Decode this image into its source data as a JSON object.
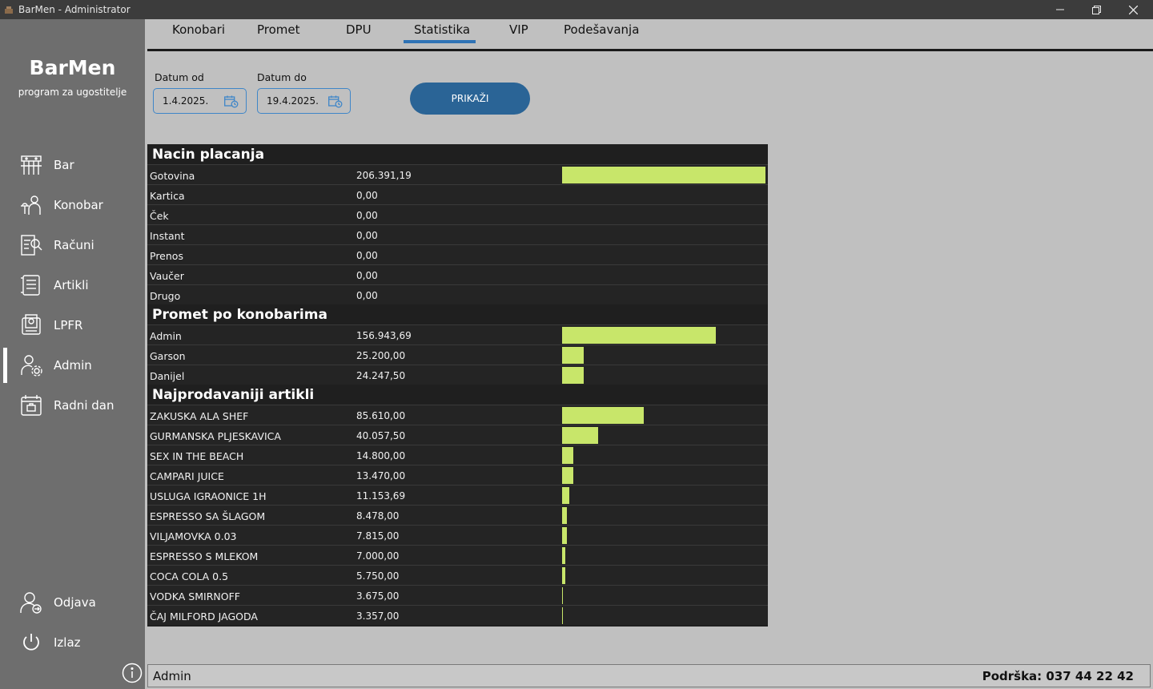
{
  "window": {
    "title": "BarMen - Administrator"
  },
  "brand": {
    "name": "BarMen",
    "tagline": "program za ugostitelje"
  },
  "sidebar": {
    "items": [
      {
        "label": "Bar",
        "icon": "bar-icon"
      },
      {
        "label": "Konobar",
        "icon": "waiter-icon"
      },
      {
        "label": "Računi",
        "icon": "receipt-search-icon"
      },
      {
        "label": "Artikli",
        "icon": "articles-list-icon"
      },
      {
        "label": "LPFR",
        "icon": "lpfr-icon"
      },
      {
        "label": "Admin",
        "icon": "admin-gear-icon",
        "active": true
      },
      {
        "label": "Radni dan",
        "icon": "calendar-briefcase-icon"
      }
    ],
    "bottom": [
      {
        "label": "Odjava",
        "icon": "logout-user-icon"
      },
      {
        "label": "Izlaz",
        "icon": "power-icon"
      }
    ]
  },
  "tabs": [
    {
      "label": "Konobari"
    },
    {
      "label": "Promet"
    },
    {
      "label": "DPU"
    },
    {
      "label": "Statistika",
      "active": true
    },
    {
      "label": "VIP"
    },
    {
      "label": "Podešavanja"
    }
  ],
  "filters": {
    "from_label": "Datum od",
    "from_value": "1.4.2025.",
    "to_label": "Datum do",
    "to_value": "19.4.2025.",
    "show_button": "PRIKAŽI"
  },
  "stats": {
    "bar_color": "#c8e66a",
    "sections": [
      {
        "title": "Nacin placanja",
        "rows": [
          {
            "name": "Gotovina",
            "value": "206.391,19",
            "fraction": 1.0
          },
          {
            "name": "Kartica",
            "value": "0,00",
            "fraction": 0
          },
          {
            "name": "Ček",
            "value": "0,00",
            "fraction": 0
          },
          {
            "name": "Instant",
            "value": "0,00",
            "fraction": 0
          },
          {
            "name": "Prenos",
            "value": "0,00",
            "fraction": 0
          },
          {
            "name": "Vaučer",
            "value": "0,00",
            "fraction": 0
          },
          {
            "name": "Drugo",
            "value": "0,00",
            "fraction": 0
          }
        ]
      },
      {
        "title": "Promet po konobarima",
        "rows": [
          {
            "name": "Admin",
            "value": "156.943,69",
            "fraction": 0.756
          },
          {
            "name": "Garson",
            "value": "25.200,00",
            "fraction": 0.106
          },
          {
            "name": "Danijel",
            "value": "24.247,50",
            "fraction": 0.106
          }
        ]
      },
      {
        "title": "Najprodavaniji artikli",
        "rows": [
          {
            "name": "ZAKUSKA ALA SHEF",
            "value": "85.610,00",
            "fraction": 0.402
          },
          {
            "name": "GURMANSKA PLJESKAVICA",
            "value": "40.057,50",
            "fraction": 0.177
          },
          {
            "name": "SEX IN THE BEACH",
            "value": "14.800,00",
            "fraction": 0.055
          },
          {
            "name": "CAMPARI JUICE",
            "value": "13.470,00",
            "fraction": 0.055
          },
          {
            "name": "USLUGA IGRAONICE 1H",
            "value": "11.153,69",
            "fraction": 0.035
          },
          {
            "name": "ESPRESSO SA ŠLAGOM",
            "value": "8.478,00",
            "fraction": 0.024
          },
          {
            "name": "VILJAMOVKA 0.03",
            "value": "7.815,00",
            "fraction": 0.024
          },
          {
            "name": "ESPRESSO S MLEKOM",
            "value": "7.000,00",
            "fraction": 0.016
          },
          {
            "name": "COCA COLA 0.5",
            "value": "5.750,00",
            "fraction": 0.016
          },
          {
            "name": "VODKA SMIRNOFF",
            "value": "3.675,00",
            "fraction": 0.004
          },
          {
            "name": "ČAJ MILFORD JAGODA",
            "value": "3.357,00",
            "fraction": 0.004
          }
        ]
      }
    ]
  },
  "status": {
    "user": "Admin",
    "support": "Podrška: 037 44 22 42"
  }
}
